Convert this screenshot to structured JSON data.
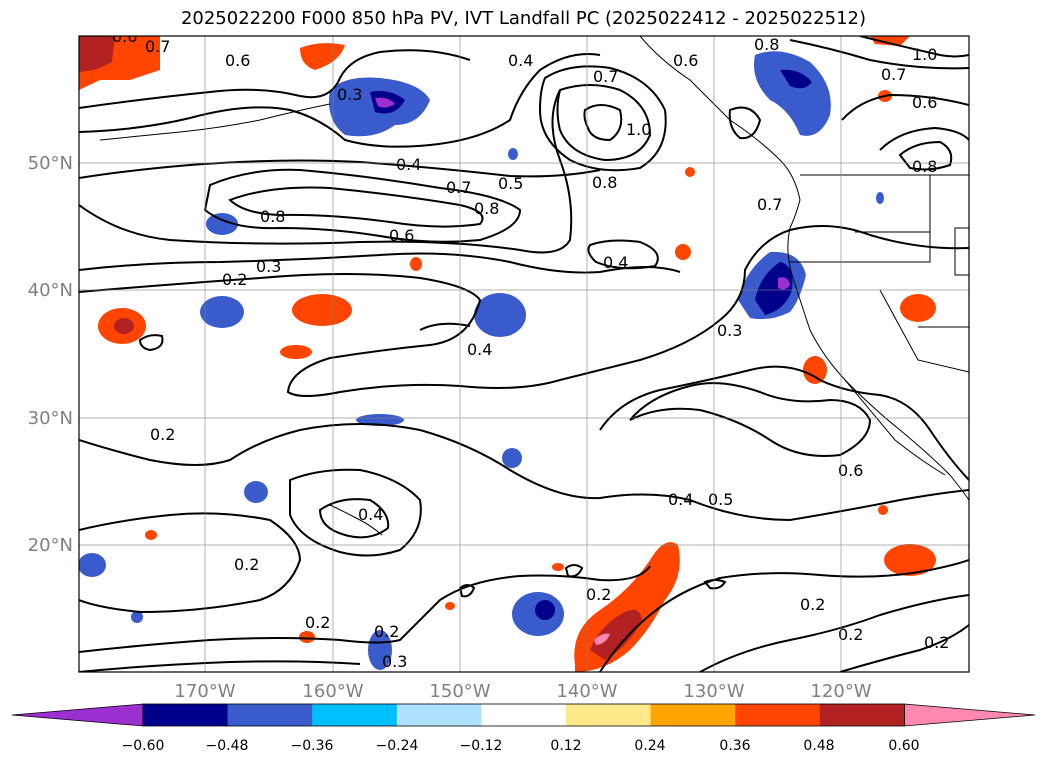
{
  "title": "2025022200 F000 850 hPa PV, IVT Landfall PC (2025022412 - 2025022512)",
  "lat_labels": [
    "50°N",
    "40°N",
    "30°N",
    "20°N"
  ],
  "lon_labels": [
    "170°W",
    "160°W",
    "150°W",
    "140°W",
    "130°W",
    "120°W"
  ],
  "contour_labels": [
    "0.6",
    "0.7",
    "0.6",
    "0.3",
    "0.4",
    "0.7",
    "1.0",
    "0.6",
    "0.4",
    "0.5",
    "0.7",
    "0.8",
    "0.8",
    "0.8",
    "0.6",
    "0.3",
    "0.2",
    "0.4",
    "0.3",
    "0.4",
    "0.2",
    "0.4",
    "0.5",
    "0.6",
    "0.2",
    "0.4",
    "0.2",
    "0.2",
    "0.2",
    "0.3",
    "0.2",
    "0.2",
    "0.2",
    "0.8",
    "1.0",
    "0.7",
    "0.6",
    "0.8",
    "0.7"
  ],
  "colorbar": {
    "ticks": [
      "−0.60",
      "−0.48",
      "−0.36",
      "−0.24",
      "−0.12",
      "0.12",
      "0.24",
      "0.36",
      "0.48",
      "0.60"
    ],
    "colors": [
      "#9b30d0",
      "#00008b",
      "#3a5bcc",
      "#00bfff",
      "#b0e2ff",
      "#ffffff",
      "#ffe88a",
      "#ffa500",
      "#ff4500",
      "#b22222",
      "#ff88b0"
    ]
  }
}
